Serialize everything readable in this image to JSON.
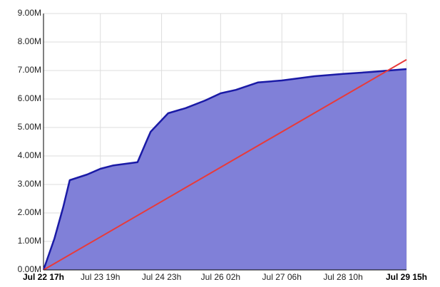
{
  "chart_data": {
    "type": "area",
    "xlim": [
      "Jul 22 17h",
      "Jul 29 15h"
    ],
    "xticks": [
      "Jul 22 17h",
      "Jul 23 19h",
      "Jul 24 23h",
      "Jul 26 02h",
      "Jul 27 06h",
      "Jul 28 10h",
      "Jul 29 15h"
    ],
    "ylim": [
      0,
      9
    ],
    "yticks": [
      {
        "value": 0,
        "label": "0.00M"
      },
      {
        "value": 1,
        "label": "1.00M"
      },
      {
        "value": 2,
        "label": "2.00M"
      },
      {
        "value": 3,
        "label": "3.00M"
      },
      {
        "value": 4,
        "label": "4.00M"
      },
      {
        "value": 5,
        "label": "5.00M"
      },
      {
        "value": 6,
        "label": "6.00M"
      },
      {
        "value": 7,
        "label": "7.00M"
      },
      {
        "value": 8,
        "label": "8.00M"
      },
      {
        "value": 9,
        "label": "9.00M"
      }
    ],
    "grid": true,
    "series": [
      {
        "color": "#1a1aa6",
        "fill": "#8080d8",
        "x": [
          "Jul 22 17h",
          "Jul 22 22h",
          "Jul 23 02h",
          "Jul 23 05h",
          "Jul 23 13h",
          "Jul 23 19h",
          "Jul 24 01h",
          "Jul 24 12h",
          "Jul 24 16h",
          "Jul 24 18h",
          "Jul 25 02h",
          "Jul 25 10h",
          "Jul 25 19h",
          "Jul 26 02h",
          "Jul 26 09h",
          "Jul 26 19h",
          "Jul 27 06h",
          "Jul 27 21h",
          "Jul 28 10h",
          "Jul 28 23h",
          "Jul 29 15h"
        ],
        "values": [
          0,
          1.1,
          2.2,
          3.15,
          3.35,
          3.55,
          3.67,
          3.78,
          4.5,
          4.85,
          5.5,
          5.68,
          5.95,
          6.2,
          6.32,
          6.58,
          6.65,
          6.8,
          6.88,
          6.95,
          7.05
        ]
      },
      {
        "color": "#e83a3a",
        "x": [
          "Jul 22 17h",
          "Jul 29 15h"
        ],
        "values": [
          0,
          7.38
        ]
      }
    ]
  }
}
